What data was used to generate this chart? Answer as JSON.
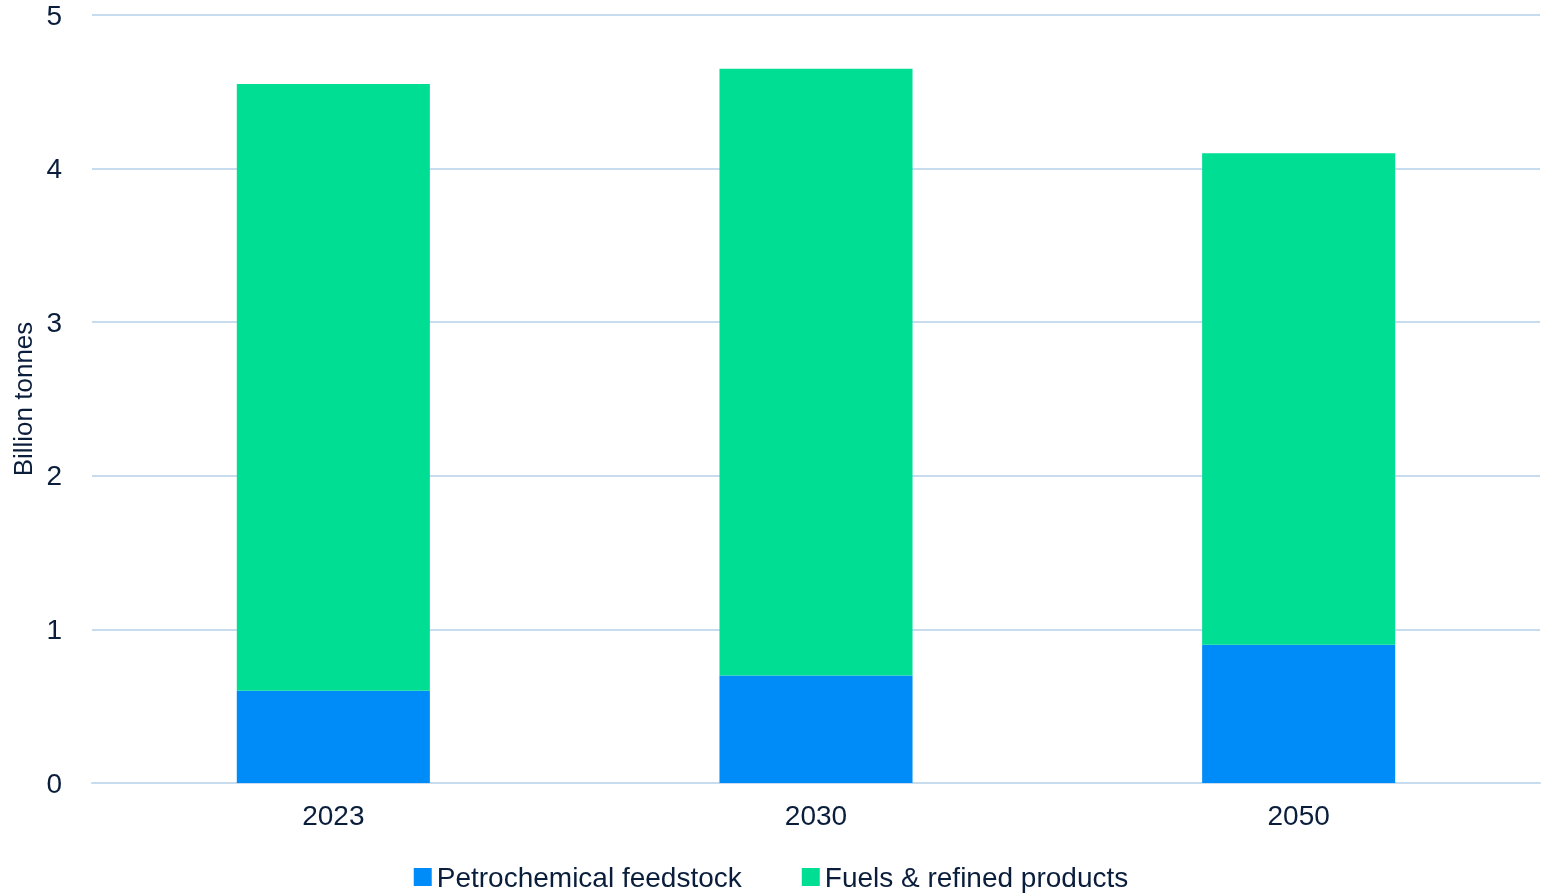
{
  "chart_data": {
    "type": "bar",
    "ylabel": "Billion tonnes",
    "categories": [
      "2023",
      "2030",
      "2050"
    ],
    "stacked": true,
    "series": [
      {
        "name": "Petrochemical feedstock",
        "color": "#008cf8",
        "values": [
          0.6,
          0.7,
          0.9
        ]
      },
      {
        "name": "Fuels & refined products",
        "color": "#00de93",
        "values": [
          3.95,
          3.95,
          3.2
        ]
      }
    ],
    "ylim": [
      0,
      5
    ],
    "yticks": [
      0,
      1,
      2,
      3,
      4,
      5
    ],
    "grid": "y",
    "legend": "bottom"
  }
}
